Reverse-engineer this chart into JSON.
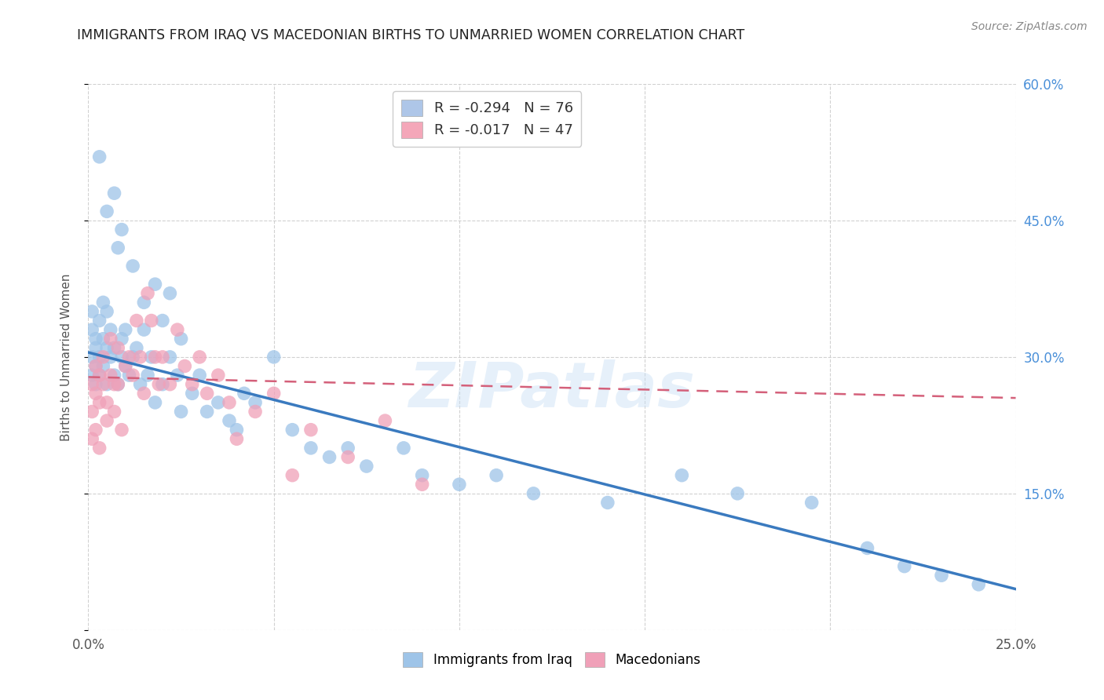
{
  "title": "IMMIGRANTS FROM IRAQ VS MACEDONIAN BIRTHS TO UNMARRIED WOMEN CORRELATION CHART",
  "source": "Source: ZipAtlas.com",
  "ylabel": "Births to Unmarried Women",
  "xlim": [
    0.0,
    0.25
  ],
  "ylim": [
    0.0,
    0.6
  ],
  "xticks": [
    0.0,
    0.05,
    0.1,
    0.15,
    0.2,
    0.25
  ],
  "xticklabels": [
    "0.0%",
    "",
    "",
    "",
    "",
    "25.0%"
  ],
  "yticks": [
    0.0,
    0.15,
    0.3,
    0.45,
    0.6
  ],
  "legend_entries": [
    {
      "color": "#aec6e8",
      "R": "-0.294",
      "N": "76"
    },
    {
      "color": "#f4a7b9",
      "R": "-0.017",
      "N": "47"
    }
  ],
  "legend_labels": [
    "Immigrants from Iraq",
    "Macedonians"
  ],
  "blue_line_color": "#3a7abf",
  "pink_line_color": "#d4607a",
  "blue_scatter_color": "#9ec4e8",
  "pink_scatter_color": "#f0a0b8",
  "blue_line_y0": 0.305,
  "blue_line_y1": 0.045,
  "pink_line_y0": 0.278,
  "pink_line_y1": 0.255,
  "watermark_text": "ZIPatlas",
  "blue_points_x": [
    0.001,
    0.001,
    0.001,
    0.001,
    0.002,
    0.002,
    0.002,
    0.002,
    0.003,
    0.003,
    0.003,
    0.004,
    0.004,
    0.004,
    0.005,
    0.005,
    0.005,
    0.006,
    0.006,
    0.007,
    0.007,
    0.008,
    0.008,
    0.009,
    0.009,
    0.01,
    0.01,
    0.011,
    0.012,
    0.013,
    0.014,
    0.015,
    0.016,
    0.017,
    0.018,
    0.02,
    0.022,
    0.024,
    0.025,
    0.028,
    0.03,
    0.032,
    0.035,
    0.038,
    0.04,
    0.042,
    0.045,
    0.05,
    0.055,
    0.06,
    0.065,
    0.07,
    0.075,
    0.085,
    0.09,
    0.1,
    0.11,
    0.12,
    0.14,
    0.16,
    0.175,
    0.195,
    0.21,
    0.22,
    0.23,
    0.24,
    0.003,
    0.005,
    0.007,
    0.009,
    0.012,
    0.015,
    0.018,
    0.02,
    0.022,
    0.025
  ],
  "blue_points_y": [
    0.3,
    0.33,
    0.35,
    0.28,
    0.31,
    0.29,
    0.27,
    0.32,
    0.3,
    0.28,
    0.34,
    0.32,
    0.36,
    0.29,
    0.31,
    0.35,
    0.27,
    0.3,
    0.33,
    0.28,
    0.31,
    0.42,
    0.27,
    0.3,
    0.32,
    0.29,
    0.33,
    0.28,
    0.3,
    0.31,
    0.27,
    0.33,
    0.28,
    0.3,
    0.25,
    0.27,
    0.3,
    0.28,
    0.24,
    0.26,
    0.28,
    0.24,
    0.25,
    0.23,
    0.22,
    0.26,
    0.25,
    0.3,
    0.22,
    0.2,
    0.19,
    0.2,
    0.18,
    0.2,
    0.17,
    0.16,
    0.17,
    0.15,
    0.14,
    0.17,
    0.15,
    0.14,
    0.09,
    0.07,
    0.06,
    0.05,
    0.52,
    0.46,
    0.48,
    0.44,
    0.4,
    0.36,
    0.38,
    0.34,
    0.37,
    0.32
  ],
  "pink_points_x": [
    0.001,
    0.001,
    0.001,
    0.002,
    0.002,
    0.002,
    0.003,
    0.003,
    0.003,
    0.004,
    0.004,
    0.005,
    0.005,
    0.006,
    0.006,
    0.007,
    0.007,
    0.008,
    0.008,
    0.009,
    0.01,
    0.011,
    0.012,
    0.013,
    0.014,
    0.015,
    0.016,
    0.017,
    0.018,
    0.019,
    0.02,
    0.022,
    0.024,
    0.026,
    0.028,
    0.03,
    0.032,
    0.035,
    0.038,
    0.04,
    0.045,
    0.05,
    0.055,
    0.06,
    0.07,
    0.08,
    0.09
  ],
  "pink_points_y": [
    0.27,
    0.24,
    0.21,
    0.26,
    0.22,
    0.29,
    0.25,
    0.28,
    0.2,
    0.3,
    0.27,
    0.25,
    0.23,
    0.28,
    0.32,
    0.27,
    0.24,
    0.31,
    0.27,
    0.22,
    0.29,
    0.3,
    0.28,
    0.34,
    0.3,
    0.26,
    0.37,
    0.34,
    0.3,
    0.27,
    0.3,
    0.27,
    0.33,
    0.29,
    0.27,
    0.3,
    0.26,
    0.28,
    0.25,
    0.21,
    0.24,
    0.26,
    0.17,
    0.22,
    0.19,
    0.23,
    0.16
  ],
  "background_color": "#ffffff",
  "grid_color": "#cccccc",
  "title_color": "#222222",
  "axis_tick_color": "#555555",
  "right_label_color": "#4a90d9",
  "ytick_right_labels": [
    "15.0%",
    "30.0%",
    "45.0%",
    "60.0%"
  ],
  "ytick_right_positions": [
    0.15,
    0.3,
    0.45,
    0.6
  ]
}
